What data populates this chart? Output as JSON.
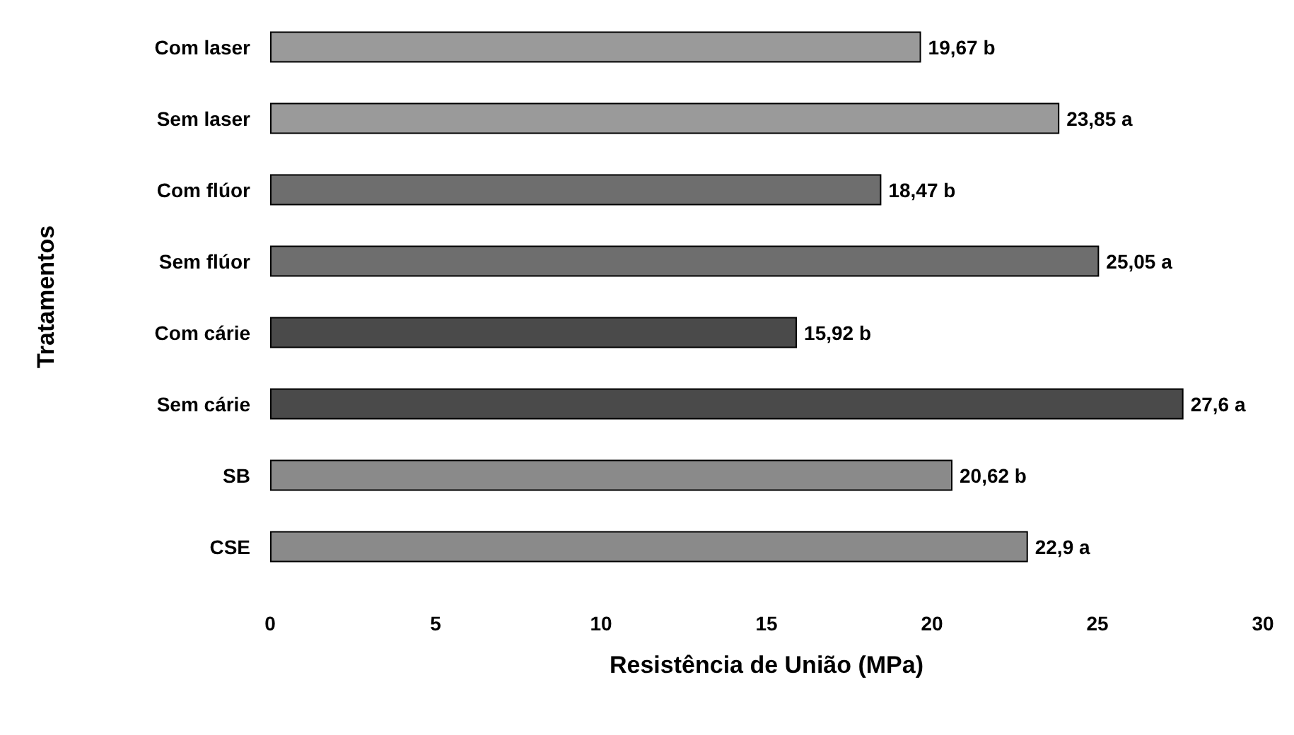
{
  "chart_data": {
    "type": "bar",
    "orientation": "horizontal",
    "ylabel": "Tratamentos",
    "xlabel": "Resistência de União (MPa)",
    "categories": [
      "Com laser",
      "Sem laser",
      "Com flúor",
      "Sem flúor",
      "Com cárie",
      "Sem cárie",
      "SB",
      "CSE"
    ],
    "values": [
      19.67,
      23.85,
      18.47,
      25.05,
      15.92,
      27.6,
      20.62,
      22.9
    ],
    "value_labels": [
      "19,67 b",
      "23,85 a",
      "18,47 b",
      "25,05 a",
      "15,92 b",
      "27,6 a",
      "20,62 b",
      "22,9 a"
    ],
    "colors": [
      "#9a9a9a",
      "#9a9a9a",
      "#6e6e6e",
      "#6e6e6e",
      "#4a4a4a",
      "#4a4a4a",
      "#8a8a8a",
      "#8a8a8a"
    ],
    "xlim": [
      0,
      30
    ],
    "xticks": [
      0,
      5,
      10,
      15,
      20,
      25,
      30
    ],
    "grid": false,
    "tick_labels": "xy"
  }
}
